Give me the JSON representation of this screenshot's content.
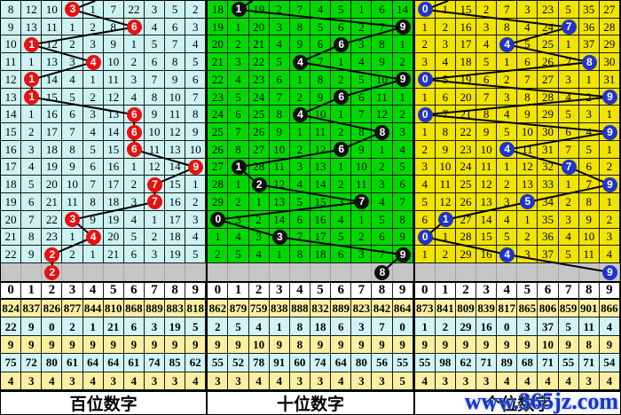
{
  "watermark": "www.365jz.com",
  "digits_header": [
    "0",
    "1",
    "2",
    "3",
    "4",
    "5",
    "6",
    "7",
    "8",
    "9"
  ],
  "colors": {
    "panel_bg": [
      "#cdf2f2",
      "#00d900",
      "#f0e400"
    ],
    "circle_fill": [
      "#e81010",
      "#101010",
      "#2233cc"
    ],
    "circle_text": "#ffffff",
    "gray_row_bg": "#c6c6c6",
    "stat_row_yellow": "#fbf0a2",
    "stat_row_cyan": "#d2f4f6",
    "trend_line": "#000000"
  },
  "chart_data": [
    {
      "type": "trend-table",
      "footer": "百位数字",
      "miss_rows": [
        [
          8,
          12,
          10,
          3,
          1,
          7,
          22,
          3,
          5,
          2
        ],
        [
          9,
          13,
          11,
          1,
          2,
          8,
          6,
          4,
          6,
          3
        ],
        [
          10,
          1,
          12,
          2,
          3,
          9,
          1,
          5,
          7,
          4
        ],
        [
          11,
          1,
          13,
          3,
          4,
          10,
          2,
          6,
          8,
          5
        ],
        [
          12,
          1,
          14,
          4,
          1,
          11,
          3,
          7,
          9,
          6
        ],
        [
          13,
          1,
          15,
          5,
          2,
          12,
          4,
          8,
          10,
          7
        ],
        [
          14,
          1,
          16,
          6,
          3,
          13,
          6,
          9,
          11,
          8
        ],
        [
          15,
          2,
          17,
          7,
          4,
          14,
          6,
          10,
          12,
          9
        ],
        [
          16,
          3,
          18,
          8,
          5,
          15,
          6,
          11,
          13,
          10
        ],
        [
          17,
          4,
          19,
          9,
          6,
          16,
          1,
          12,
          14,
          9
        ],
        [
          18,
          5,
          20,
          10,
          7,
          17,
          2,
          7,
          15,
          1
        ],
        [
          19,
          6,
          21,
          11,
          8,
          18,
          3,
          7,
          16,
          2
        ],
        [
          20,
          7,
          22,
          3,
          9,
          19,
          4,
          1,
          17,
          3
        ],
        [
          21,
          8,
          23,
          1,
          4,
          20,
          5,
          2,
          18,
          4
        ],
        [
          22,
          9,
          2,
          2,
          1,
          21,
          6,
          3,
          19,
          5
        ]
      ],
      "drawn_cols": [
        3,
        6,
        1,
        4,
        1,
        1,
        6,
        6,
        6,
        9,
        7,
        7,
        3,
        4,
        2
      ],
      "pending": {
        "col": 2,
        "value": "2"
      },
      "entry_top_col": 4.6,
      "stats": [
        [
          824,
          837,
          826,
          877,
          844,
          810,
          868,
          889,
          883,
          818
        ],
        [
          22,
          9,
          0,
          2,
          1,
          21,
          6,
          3,
          19,
          5
        ],
        [
          9,
          9,
          9,
          9,
          9,
          9,
          9,
          9,
          9,
          9
        ],
        [
          75,
          72,
          80,
          61,
          64,
          64,
          61,
          74,
          85,
          62
        ],
        [
          4,
          3,
          4,
          3,
          4,
          3,
          4,
          3,
          3,
          4
        ]
      ]
    },
    {
      "type": "trend-table",
      "footer": "十位数字",
      "miss_rows": [
        [
          18,
          1,
          19,
          2,
          7,
          4,
          5,
          1,
          6,
          14
        ],
        [
          19,
          1,
          20,
          3,
          8,
          5,
          6,
          2,
          7,
          9
        ],
        [
          20,
          2,
          21,
          4,
          9,
          6,
          6,
          3,
          8,
          1
        ],
        [
          21,
          3,
          22,
          5,
          4,
          7,
          1,
          4,
          9,
          2
        ],
        [
          22,
          4,
          23,
          6,
          1,
          8,
          2,
          5,
          10,
          9
        ],
        [
          23,
          5,
          24,
          7,
          2,
          9,
          6,
          6,
          11,
          1
        ],
        [
          24,
          6,
          25,
          8,
          4,
          10,
          1,
          7,
          12,
          2
        ],
        [
          25,
          7,
          26,
          9,
          1,
          11,
          2,
          8,
          8,
          3
        ],
        [
          26,
          8,
          27,
          10,
          2,
          12,
          6,
          9,
          1,
          4
        ],
        [
          27,
          1,
          28,
          11,
          3,
          13,
          1,
          10,
          2,
          5
        ],
        [
          28,
          1,
          2,
          12,
          4,
          14,
          2,
          11,
          3,
          6
        ],
        [
          29,
          2,
          1,
          13,
          5,
          15,
          3,
          7,
          4,
          7
        ],
        [
          0,
          3,
          2,
          14,
          6,
          16,
          4,
          1,
          5,
          8
        ],
        [
          1,
          4,
          3,
          3,
          7,
          17,
          5,
          2,
          6,
          9
        ],
        [
          2,
          5,
          4,
          1,
          8,
          18,
          6,
          3,
          7,
          9
        ]
      ],
      "drawn_cols": [
        1,
        9,
        6,
        4,
        9,
        6,
        4,
        8,
        6,
        1,
        2,
        7,
        0,
        3,
        9
      ],
      "pending": {
        "col": 8,
        "value": "8"
      },
      "entry_top_col": 2.2,
      "stats": [
        [
          862,
          879,
          759,
          838,
          888,
          832,
          889,
          823,
          842,
          864
        ],
        [
          2,
          5,
          4,
          1,
          8,
          18,
          6,
          3,
          7,
          0
        ],
        [
          9,
          9,
          10,
          9,
          8,
          9,
          9,
          9,
          9,
          9
        ],
        [
          55,
          52,
          78,
          91,
          60,
          74,
          64,
          80,
          56,
          55
        ],
        [
          3,
          3,
          4,
          4,
          3,
          3,
          4,
          3,
          3,
          5
        ]
      ]
    },
    {
      "type": "trend-table",
      "footer": "个位数字",
      "miss_rows": [
        [
          0,
          1,
          15,
          2,
          7,
          3,
          23,
          5,
          35,
          27
        ],
        [
          1,
          2,
          16,
          3,
          8,
          4,
          24,
          7,
          36,
          28
        ],
        [
          2,
          3,
          17,
          4,
          4,
          5,
          25,
          1,
          37,
          29
        ],
        [
          3,
          4,
          18,
          5,
          1,
          6,
          26,
          2,
          8,
          30
        ],
        [
          0,
          5,
          19,
          6,
          2,
          7,
          27,
          3,
          1,
          31
        ],
        [
          1,
          6,
          20,
          7,
          3,
          8,
          28,
          4,
          2,
          9
        ],
        [
          0,
          7,
          21,
          8,
          4,
          9,
          29,
          5,
          3,
          1
        ],
        [
          1,
          8,
          22,
          9,
          5,
          10,
          30,
          6,
          4,
          9
        ],
        [
          2,
          9,
          23,
          10,
          4,
          11,
          31,
          7,
          5,
          1
        ],
        [
          3,
          10,
          24,
          11,
          1,
          12,
          32,
          7,
          6,
          2
        ],
        [
          4,
          11,
          25,
          12,
          2,
          13,
          33,
          1,
          7,
          9
        ],
        [
          5,
          12,
          26,
          13,
          3,
          5,
          34,
          2,
          8,
          1
        ],
        [
          6,
          1,
          27,
          14,
          4,
          1,
          35,
          3,
          9,
          2
        ],
        [
          0,
          1,
          28,
          15,
          5,
          2,
          36,
          4,
          10,
          3
        ],
        [
          1,
          2,
          29,
          16,
          4,
          3,
          37,
          5,
          11,
          4
        ]
      ],
      "drawn_cols": [
        0,
        7,
        4,
        8,
        0,
        9,
        0,
        9,
        4,
        7,
        9,
        5,
        1,
        0,
        4
      ],
      "pending": {
        "col": 9,
        "value": "9"
      },
      "entry_top_col": 1.6,
      "stats": [
        [
          873,
          841,
          809,
          839,
          817,
          865,
          806,
          859,
          901,
          866
        ],
        [
          1,
          2,
          29,
          16,
          0,
          3,
          37,
          5,
          11,
          4
        ],
        [
          9,
          9,
          9,
          9,
          9,
          9,
          10,
          9,
          8,
          9
        ],
        [
          55,
          98,
          62,
          71,
          89,
          68,
          71,
          55,
          71,
          54
        ],
        [
          4,
          3,
          3,
          3,
          4,
          4,
          4,
          4,
          3,
          4
        ]
      ]
    }
  ]
}
